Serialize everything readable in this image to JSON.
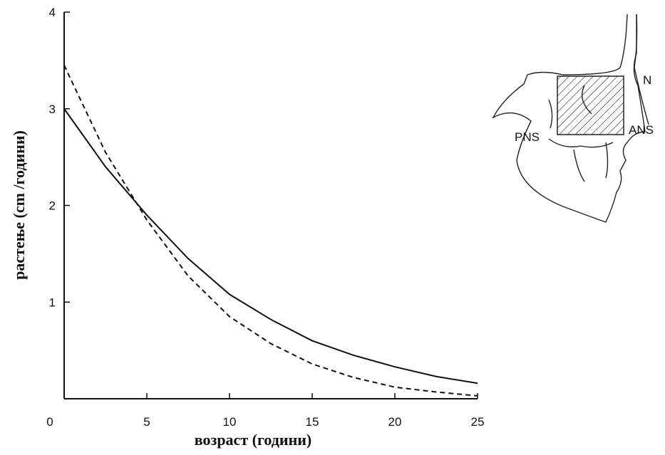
{
  "chart_data": {
    "type": "line",
    "x_label": "возраст (години)",
    "y_label": "растење (cm /години)",
    "x": [
      0,
      2.5,
      5,
      7.5,
      10,
      12.5,
      15,
      17.5,
      20,
      22.5,
      25
    ],
    "series": [
      {
        "color": "#111111",
        "dash": "solid",
        "values": [
          3.0,
          2.4,
          1.9,
          1.45,
          1.08,
          0.82,
          0.6,
          0.45,
          0.33,
          0.23,
          0.16
        ]
      },
      {
        "color": "#111111",
        "dash": "dashed",
        "values": [
          3.45,
          2.55,
          1.85,
          1.27,
          0.85,
          0.57,
          0.36,
          0.22,
          0.12,
          0.07,
          0.03
        ]
      }
    ],
    "xlim": [
      0,
      25
    ],
    "xticks": [
      0,
      5,
      10,
      15,
      20,
      25
    ],
    "ylim": [
      0,
      4
    ],
    "yticks": [
      1,
      2,
      3,
      4
    ],
    "grid": false,
    "annotations": [
      "N",
      "ANS",
      "PNS"
    ]
  }
}
